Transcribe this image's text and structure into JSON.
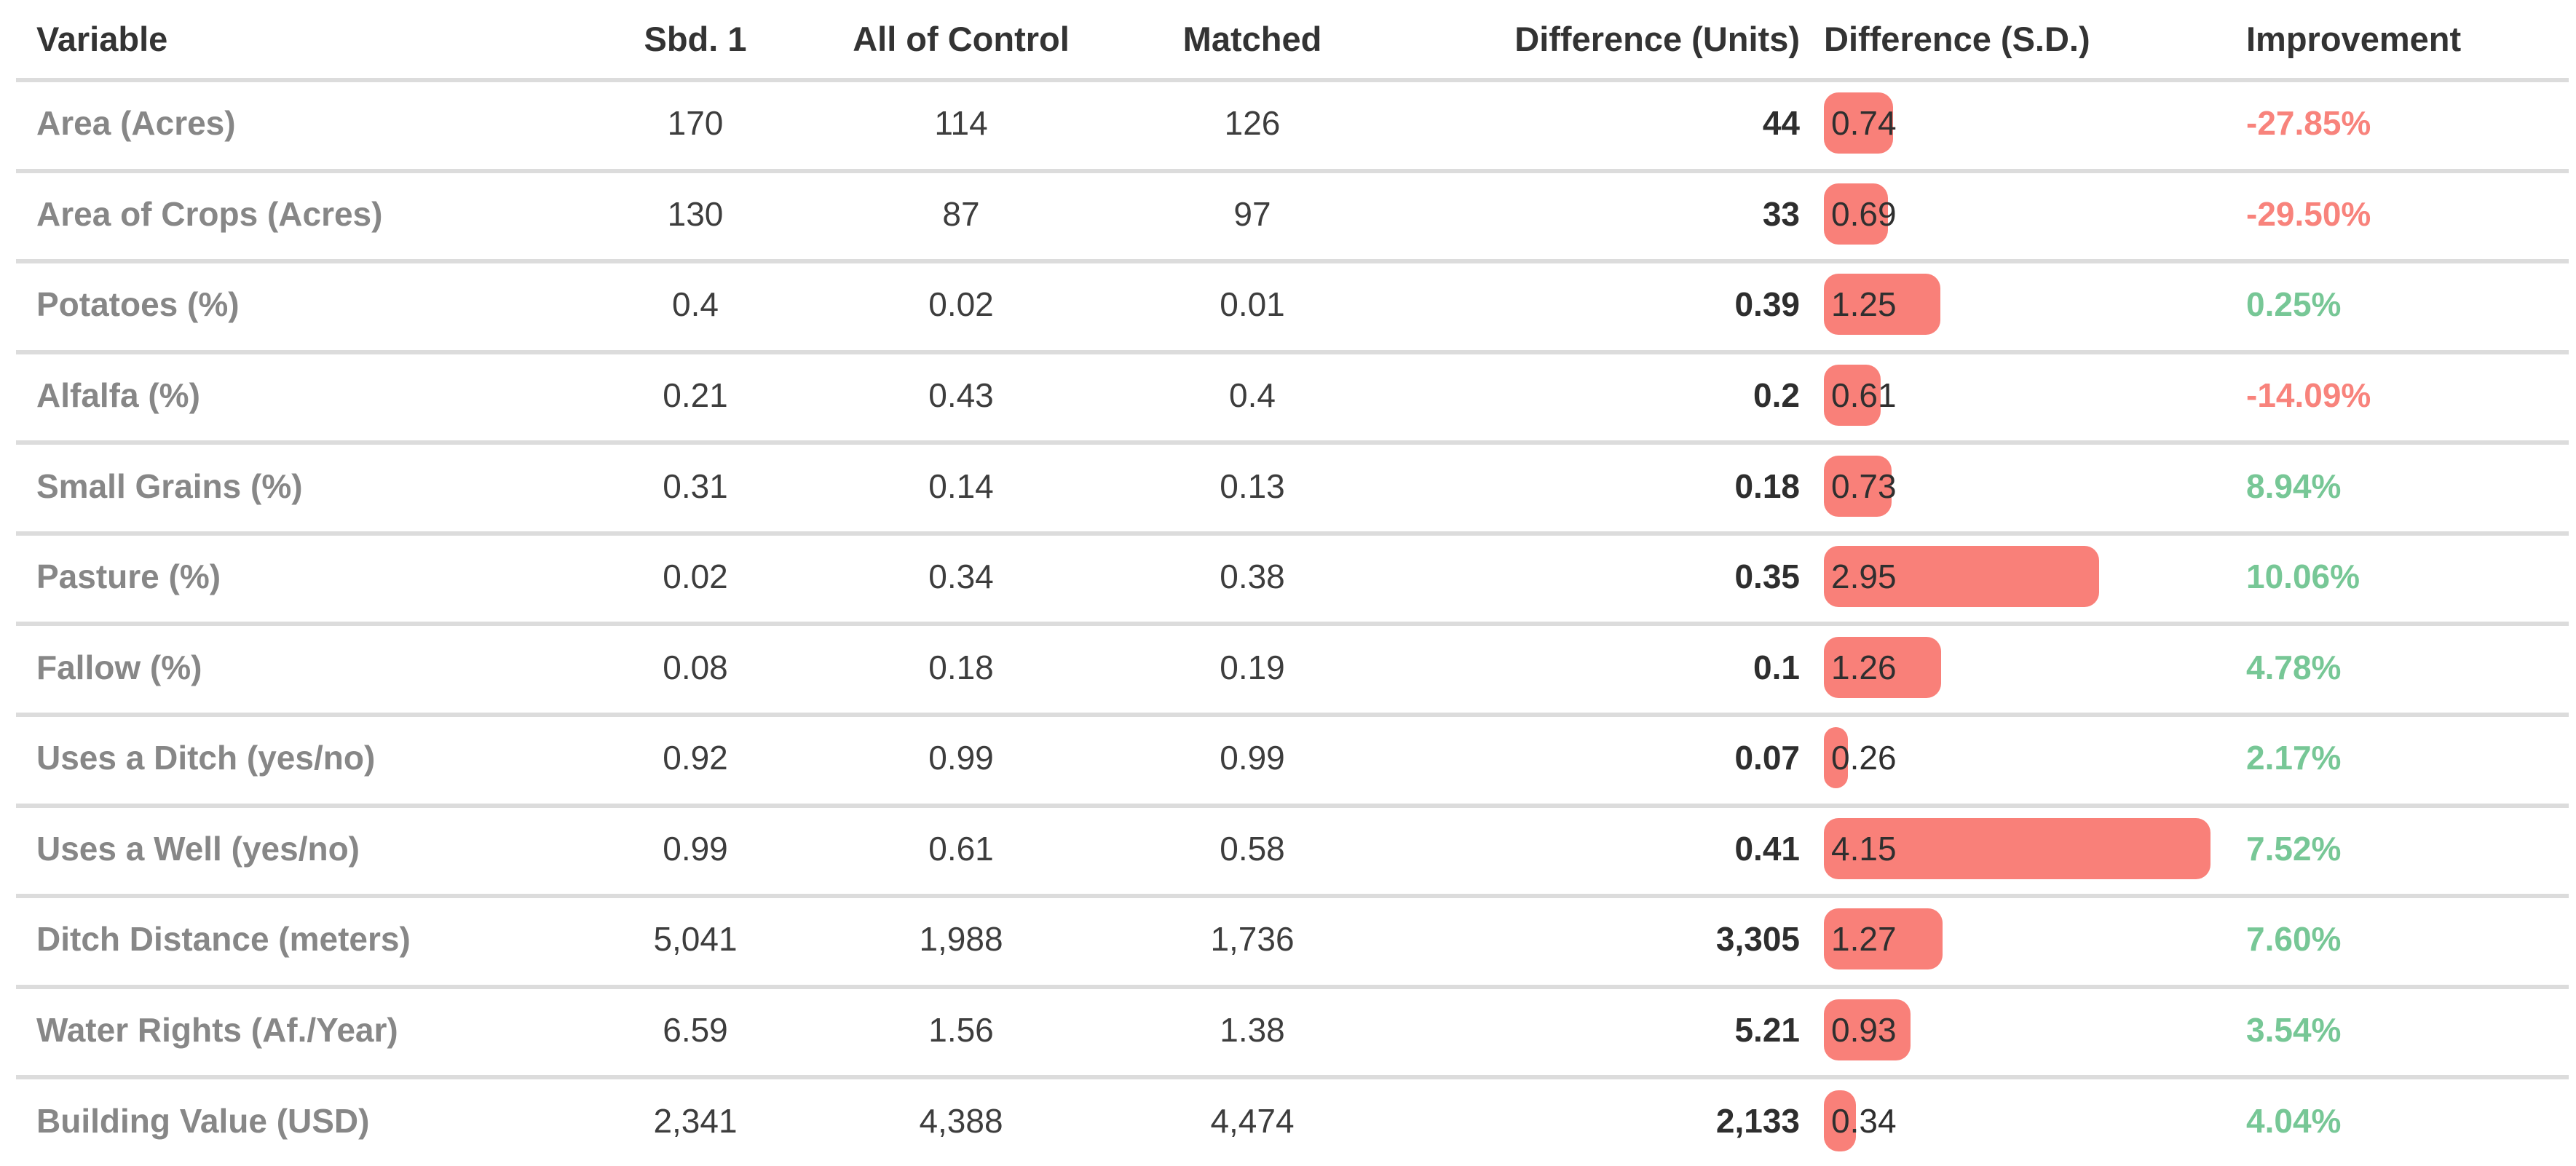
{
  "colors": {
    "sd_bar": "#f98079",
    "improvement_positive": "#77c796",
    "improvement_negative": "#f8837c",
    "header_text": "#333333",
    "row_label_text": "#878787",
    "value_text": "#3d3d3d",
    "difference_units_text": "#2e2e2e",
    "sd_value_text": "#2f2f2f",
    "divider": "#dcdcdc",
    "background": "#ffffff"
  },
  "chart_data": {
    "type": "table",
    "title": "",
    "columns": [
      "Variable",
      "Sbd. 1",
      "All of Control",
      "Matched",
      "Difference (Units)",
      "Difference (S.D.)",
      "Improvement"
    ],
    "rows": [
      [
        "Area (Acres)",
        "170",
        "114",
        "126",
        "44",
        "0.74",
        "-27.85%"
      ],
      [
        "Area of Crops (Acres)",
        "130",
        "87",
        "97",
        "33",
        "0.69",
        "-29.50%"
      ],
      [
        "Potatoes (%)",
        "0.4",
        "0.02",
        "0.01",
        "0.39",
        "1.25",
        "0.25%"
      ],
      [
        "Alfalfa (%)",
        "0.21",
        "0.43",
        "0.4",
        "0.2",
        "0.61",
        "-14.09%"
      ],
      [
        "Small Grains (%)",
        "0.31",
        "0.14",
        "0.13",
        "0.18",
        "0.73",
        "8.94%"
      ],
      [
        "Pasture (%)",
        "0.02",
        "0.34",
        "0.38",
        "0.35",
        "2.95",
        "10.06%"
      ],
      [
        "Fallow (%)",
        "0.08",
        "0.18",
        "0.19",
        "0.1",
        "1.26",
        "4.78%"
      ],
      [
        "Uses a Ditch (yes/no)",
        "0.92",
        "0.99",
        "0.99",
        "0.07",
        "0.26",
        "2.17%"
      ],
      [
        "Uses a Well (yes/no)",
        "0.99",
        "0.61",
        "0.58",
        "0.41",
        "4.15",
        "7.52%"
      ],
      [
        "Ditch Distance (meters)",
        "5,041",
        "1,988",
        "1,736",
        "3,305",
        "1.27",
        "7.60%"
      ],
      [
        "Water Rights (Af./Year)",
        "6.59",
        "1.56",
        "1.38",
        "5.21",
        "0.93",
        "3.54%"
      ],
      [
        "Building Value (USD)",
        "2,341",
        "4,388",
        "4,474",
        "2,133",
        "0.34",
        "4.04%"
      ]
    ],
    "bar_column": "Difference (S.D.)",
    "sd_bar_values": [
      0.74,
      0.69,
      1.25,
      0.61,
      0.73,
      2.95,
      1.26,
      0.26,
      4.15,
      1.27,
      0.93,
      0.34
    ],
    "improvement_negative_rows": [
      "Area (Acres)",
      "Area of Crops (Acres)",
      "Alfalfa (%)"
    ],
    "legend_position": "none",
    "grid": "horizontal-row-dividers"
  }
}
